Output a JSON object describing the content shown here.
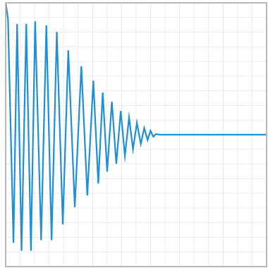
{
  "chart_data": {
    "type": "line",
    "title": "",
    "xlabel": "",
    "ylabel": "",
    "xlim": [
      0,
      1
    ],
    "ylim": [
      -1,
      1
    ],
    "grid": true,
    "grid_divisions": {
      "x": 18,
      "y": 18
    },
    "legend": "none",
    "series": [
      {
        "color": "#1f8fd6",
        "points": [
          [
            0.0,
            1.0
          ],
          [
            0.009,
            0.88
          ],
          [
            0.03,
            -0.82
          ],
          [
            0.044,
            0.84
          ],
          [
            0.061,
            -0.88
          ],
          [
            0.079,
            0.84
          ],
          [
            0.097,
            -0.88
          ],
          [
            0.113,
            0.86
          ],
          [
            0.136,
            -0.8
          ],
          [
            0.156,
            0.83
          ],
          [
            0.176,
            -0.8
          ],
          [
            0.196,
            0.78
          ],
          [
            0.219,
            -0.68
          ],
          [
            0.24,
            0.64
          ],
          [
            0.265,
            -0.55
          ],
          [
            0.29,
            0.52
          ],
          [
            0.313,
            -0.46
          ],
          [
            0.336,
            0.41
          ],
          [
            0.355,
            -0.37
          ],
          [
            0.372,
            0.32
          ],
          [
            0.389,
            -0.28
          ],
          [
            0.407,
            0.25
          ],
          [
            0.424,
            -0.22
          ],
          [
            0.441,
            0.18
          ],
          [
            0.457,
            -0.16
          ],
          [
            0.473,
            0.13
          ],
          [
            0.488,
            -0.11
          ],
          [
            0.503,
            0.09
          ],
          [
            0.518,
            -0.07
          ],
          [
            0.531,
            0.05
          ],
          [
            0.544,
            -0.04
          ],
          [
            0.555,
            0.03
          ],
          [
            0.566,
            -0.015
          ],
          [
            0.576,
            0.005
          ],
          [
            0.59,
            0.0
          ],
          [
            1.0,
            0.0
          ]
        ]
      }
    ]
  }
}
